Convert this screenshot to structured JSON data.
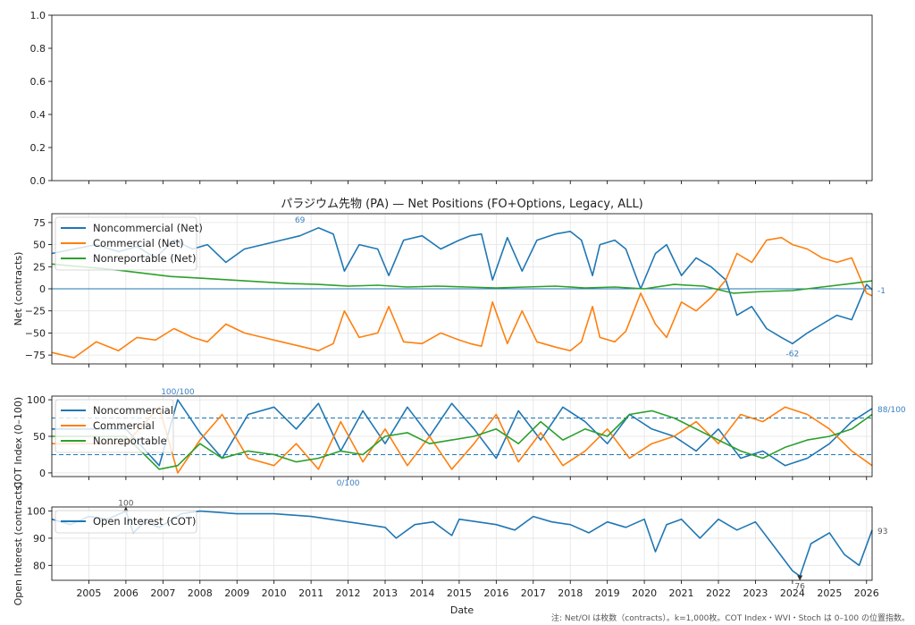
{
  "chart_data": [
    {
      "type": "line",
      "panel": "empty-top",
      "ylim": [
        0,
        1
      ],
      "yticks": [
        "0.0",
        "0.2",
        "0.4",
        "0.6",
        "0.8",
        "1.0"
      ],
      "grid": false,
      "series": []
    },
    {
      "type": "line",
      "panel": "net-positions",
      "title": "パラジウム先物 (PA) — Net Positions (FO+Options, Legacy, ALL)",
      "ylabel": "Net (contracts)",
      "ylim": [
        -85,
        85
      ],
      "yticks": [
        "−75",
        "−50",
        "−25",
        "0",
        "25",
        "50",
        "75"
      ],
      "grid": true,
      "legend": "top-left",
      "series": [
        {
          "name": "Noncommercial (Net)",
          "color": "#1f77b4",
          "x": [
            2004.0,
            2004.6,
            2005.2,
            2005.8,
            2006.3,
            2006.8,
            2007.3,
            2007.8,
            2008.2,
            2008.7,
            2009.2,
            2009.7,
            2010.2,
            2010.7,
            2011.2,
            2011.6,
            2011.9,
            2012.3,
            2012.8,
            2013.1,
            2013.5,
            2014.0,
            2014.5,
            2015.0,
            2015.3,
            2015.6,
            2015.9,
            2016.3,
            2016.7,
            2017.1,
            2017.6,
            2018.0,
            2018.3,
            2018.6,
            2018.8,
            2019.2,
            2019.5,
            2019.9,
            2020.3,
            2020.6,
            2021.0,
            2021.4,
            2021.8,
            2022.2,
            2022.5,
            2022.9,
            2023.3,
            2023.7,
            2024.0,
            2024.4,
            2024.8,
            2025.2,
            2025.6,
            2026.0,
            2026.15
          ],
          "y": [
            40,
            45,
            50,
            42,
            48,
            35,
            55,
            45,
            50,
            30,
            45,
            50,
            55,
            60,
            69,
            62,
            20,
            50,
            45,
            15,
            55,
            60,
            45,
            55,
            60,
            62,
            10,
            58,
            20,
            55,
            62,
            65,
            55,
            15,
            50,
            55,
            45,
            0,
            40,
            50,
            15,
            35,
            25,
            10,
            -30,
            -20,
            -45,
            -55,
            -62,
            -50,
            -40,
            -30,
            -35,
            5,
            -1
          ]
        },
        {
          "name": "Commercial (Net)",
          "color": "#ff7f0e",
          "x": [
            2004.0,
            2004.6,
            2005.2,
            2005.8,
            2006.3,
            2006.8,
            2007.3,
            2007.8,
            2008.2,
            2008.7,
            2009.2,
            2009.7,
            2010.2,
            2010.7,
            2011.2,
            2011.6,
            2011.9,
            2012.3,
            2012.8,
            2013.1,
            2013.5,
            2014.0,
            2014.5,
            2015.0,
            2015.3,
            2015.6,
            2015.9,
            2016.3,
            2016.7,
            2017.1,
            2017.6,
            2018.0,
            2018.3,
            2018.6,
            2018.8,
            2019.2,
            2019.5,
            2019.9,
            2020.3,
            2020.6,
            2021.0,
            2021.4,
            2021.8,
            2022.2,
            2022.5,
            2022.9,
            2023.3,
            2023.7,
            2024.0,
            2024.4,
            2024.8,
            2025.2,
            2025.6,
            2026.0,
            2026.15
          ],
          "y": [
            -72,
            -78,
            -60,
            -70,
            -55,
            -58,
            -45,
            -55,
            -60,
            -40,
            -50,
            -55,
            -60,
            -65,
            -70,
            -62,
            -25,
            -55,
            -50,
            -20,
            -60,
            -62,
            -50,
            -58,
            -62,
            -65,
            -15,
            -62,
            -25,
            -60,
            -66,
            -70,
            -60,
            -20,
            -55,
            -60,
            -48,
            -5,
            -40,
            -55,
            -15,
            -25,
            -10,
            10,
            40,
            30,
            55,
            58,
            50,
            45,
            35,
            30,
            35,
            -5,
            -8
          ]
        },
        {
          "name": "Nonreportable (Net)",
          "color": "#2ca02c",
          "x": [
            2004.0,
            2004.8,
            2005.6,
            2006.4,
            2007.2,
            2008.0,
            2008.8,
            2009.6,
            2010.4,
            2011.2,
            2012.0,
            2012.8,
            2013.6,
            2014.4,
            2015.2,
            2016.0,
            2016.8,
            2017.6,
            2018.4,
            2019.2,
            2020.0,
            2020.8,
            2021.6,
            2022.4,
            2023.2,
            2024.0,
            2024.8,
            2025.6,
            2026.15
          ],
          "y": [
            28,
            25,
            22,
            18,
            14,
            12,
            10,
            8,
            6,
            5,
            3,
            4,
            2,
            3,
            2,
            1,
            2,
            3,
            1,
            2,
            0,
            5,
            3,
            -5,
            -3,
            -2,
            2,
            6,
            9
          ]
        }
      ],
      "annotations": [
        {
          "text": "69",
          "x": 2010.7,
          "y": 69
        },
        {
          "text": "-62",
          "x": 2024.0,
          "y": -62
        },
        {
          "text": "-1",
          "x": 2026.15,
          "y": -1
        }
      ]
    },
    {
      "type": "line",
      "panel": "cot-index",
      "ylabel": "COT Index (0–100)",
      "ylim": [
        -5,
        105
      ],
      "yticks": [
        "0",
        "50",
        "100"
      ],
      "reference_lines": [
        25,
        75
      ],
      "grid": true,
      "legend": "top-left",
      "series": [
        {
          "name": "Noncommercial",
          "color": "#1f77b4",
          "x": [
            2004.0,
            2005.0,
            2006.0,
            2006.9,
            2007.4,
            2008.0,
            2008.6,
            2009.3,
            2010.0,
            2010.6,
            2011.2,
            2011.8,
            2012.4,
            2013.0,
            2013.6,
            2014.2,
            2014.8,
            2015.4,
            2016.0,
            2016.6,
            2017.2,
            2017.8,
            2018.4,
            2019.0,
            2019.6,
            2020.2,
            2020.8,
            2021.4,
            2022.0,
            2022.6,
            2023.2,
            2023.8,
            2024.4,
            2025.0,
            2025.6,
            2026.15
          ],
          "y": [
            60,
            60,
            60,
            10,
            100,
            55,
            20,
            80,
            90,
            60,
            95,
            30,
            85,
            40,
            90,
            50,
            95,
            60,
            20,
            85,
            45,
            90,
            70,
            40,
            80,
            60,
            50,
            30,
            60,
            20,
            30,
            10,
            20,
            40,
            70,
            88
          ]
        },
        {
          "name": "Commercial",
          "color": "#ff7f0e",
          "x": [
            2004.0,
            2005.0,
            2006.0,
            2006.9,
            2007.4,
            2008.0,
            2008.6,
            2009.3,
            2010.0,
            2010.6,
            2011.2,
            2011.8,
            2012.4,
            2013.0,
            2013.6,
            2014.2,
            2014.8,
            2015.4,
            2016.0,
            2016.6,
            2017.2,
            2017.8,
            2018.4,
            2019.0,
            2019.6,
            2020.2,
            2020.8,
            2021.4,
            2022.0,
            2022.6,
            2023.2,
            2023.8,
            2024.4,
            2025.0,
            2025.6,
            2026.15
          ],
          "y": [
            40,
            40,
            40,
            90,
            0,
            45,
            80,
            20,
            10,
            40,
            5,
            70,
            15,
            60,
            10,
            50,
            5,
            40,
            80,
            15,
            55,
            10,
            30,
            60,
            20,
            40,
            50,
            70,
            40,
            80,
            70,
            90,
            80,
            60,
            30,
            10
          ]
        },
        {
          "name": "Nonreportable",
          "color": "#2ca02c",
          "x": [
            2004.0,
            2005.0,
            2006.0,
            2006.9,
            2007.4,
            2008.0,
            2008.6,
            2009.3,
            2010.0,
            2010.6,
            2011.2,
            2011.8,
            2012.4,
            2013.0,
            2013.6,
            2014.2,
            2014.8,
            2015.4,
            2016.0,
            2016.6,
            2017.2,
            2017.8,
            2018.4,
            2019.0,
            2019.6,
            2020.2,
            2020.8,
            2021.4,
            2022.0,
            2022.6,
            2023.2,
            2023.8,
            2024.4,
            2025.0,
            2025.6,
            2026.15
          ],
          "y": [
            50,
            50,
            50,
            5,
            10,
            40,
            20,
            30,
            25,
            15,
            20,
            30,
            25,
            50,
            55,
            40,
            45,
            50,
            60,
            40,
            70,
            45,
            60,
            50,
            80,
            85,
            75,
            60,
            45,
            30,
            20,
            35,
            45,
            50,
            60,
            80
          ]
        }
      ],
      "annotations": [
        {
          "text": "100/100",
          "x": 2007.4,
          "y": 100
        },
        {
          "text": "0/100",
          "x": 2012.0,
          "y": 0
        },
        {
          "text": "88/100",
          "x": 2026.15,
          "y": 88
        }
      ]
    },
    {
      "type": "line",
      "panel": "open-interest",
      "ylabel": "Open Interest (contracts)",
      "xlabel": "Date",
      "xlim": [
        2004.0,
        2026.15
      ],
      "xticks": [
        "2005",
        "2006",
        "2007",
        "2008",
        "2009",
        "2010",
        "2011",
        "2012",
        "2013",
        "2014",
        "2015",
        "2016",
        "2017",
        "2018",
        "2019",
        "2020",
        "2021",
        "2022",
        "2023",
        "2024",
        "2025",
        "2026"
      ],
      "ylim": [
        74.5,
        101.5
      ],
      "yticks": [
        "80",
        "90",
        "100"
      ],
      "grid": true,
      "legend": "top-left",
      "series": [
        {
          "name": "Open Interest (COT)",
          "color": "#1f77b4",
          "x": [
            2004.0,
            2004.5,
            2005.0,
            2005.5,
            2006.0,
            2006.2,
            2006.5,
            2006.9,
            2007.5,
            2008.0,
            2009.0,
            2010.0,
            2011.0,
            2012.0,
            2012.5,
            2013.0,
            2013.3,
            2013.8,
            2014.3,
            2014.8,
            2015.0,
            2015.5,
            2016.0,
            2016.5,
            2017.0,
            2017.5,
            2018.0,
            2018.5,
            2019.0,
            2019.5,
            2020.0,
            2020.3,
            2020.6,
            2021.0,
            2021.5,
            2022.0,
            2022.5,
            2023.0,
            2023.5,
            2024.0,
            2024.2,
            2024.5,
            2025.0,
            2025.4,
            2025.8,
            2026.15
          ],
          "y": [
            97,
            95,
            98,
            97,
            100,
            92,
            96,
            94,
            99,
            100,
            99,
            99,
            98,
            96,
            95,
            94,
            90,
            95,
            96,
            91,
            97,
            96,
            95,
            93,
            98,
            96,
            95,
            92,
            96,
            94,
            97,
            85,
            95,
            97,
            90,
            97,
            93,
            96,
            87,
            78,
            76,
            88,
            92,
            84,
            80,
            93
          ]
        }
      ],
      "annotations": [
        {
          "text": "100",
          "x": 2006.0,
          "y": 100
        },
        {
          "text": "76",
          "x": 2024.2,
          "y": 76
        },
        {
          "text": "93",
          "x": 2026.15,
          "y": 93
        }
      ]
    }
  ],
  "footnote": "注: Net/OI は枚数（contracts）。k=1,000枚。COT Index・WVI・Stoch は 0–100 の位置指数。"
}
